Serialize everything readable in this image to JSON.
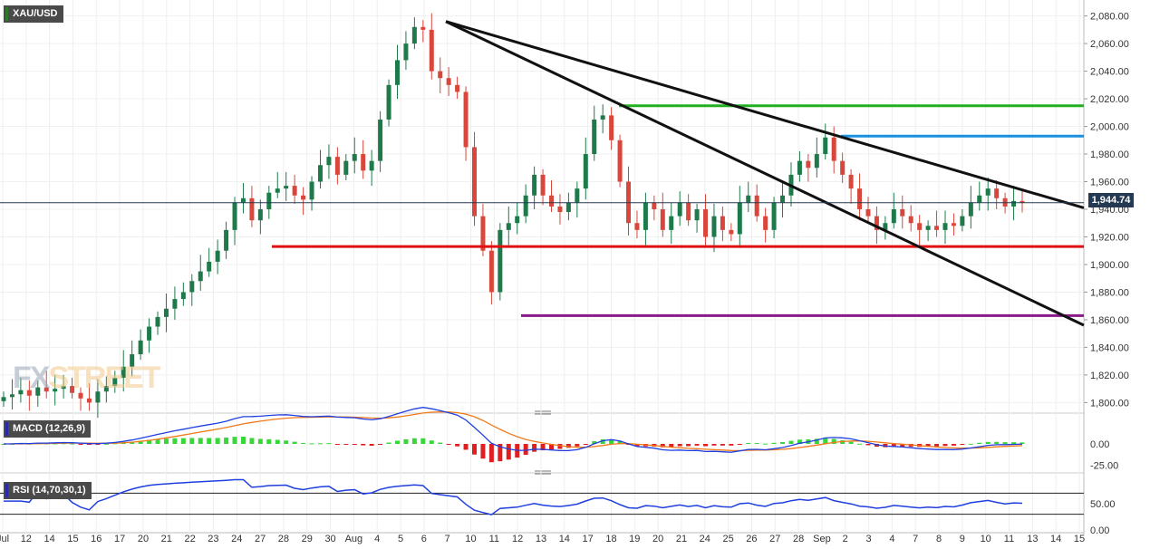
{
  "header": {
    "symbol": "XAU/USD"
  },
  "price_tag": "1,944.74",
  "indicators": {
    "macd_label": "MACD (12,26,9)",
    "rsi_label": "RSI (14,70,30,1)"
  },
  "logo": {
    "part1": "FX",
    "part2": "STREET"
  },
  "colors": {
    "up": "#1e7a4a",
    "down": "#d9473c",
    "support": "#e01010",
    "resistance_green": "#22b022",
    "resistance_blue": "#1a90e0",
    "low_line": "#8a1a8a",
    "trendline": "#111111",
    "macd_line": "#1f3fe0",
    "signal_line": "#f07a1a",
    "rsi_line": "#1f3fe0"
  },
  "chart_data": {
    "type": "candlestick",
    "y_ticks": [
      "2,080.00",
      "2,060.00",
      "2,040.00",
      "2,020.00",
      "2,000.00",
      "1,980.00",
      "1,960.00",
      "1,940.00",
      "1,920.00",
      "1,900.00",
      "1,880.00",
      "1,860.00",
      "1,840.00",
      "1,820.00",
      "1,800.00"
    ],
    "ylim": [
      1795,
      2085
    ],
    "x_labels": [
      "Jul",
      "12",
      "14",
      "15",
      "16",
      "17",
      "20",
      "21",
      "22",
      "23",
      "24",
      "27",
      "28",
      "29",
      "30",
      "Aug",
      "4",
      "5",
      "6",
      "7",
      "10",
      "11",
      "12",
      "13",
      "14",
      "17",
      "18",
      "19",
      "20",
      "21",
      "24",
      "25",
      "26",
      "27",
      "28",
      "Sep",
      "2",
      "3",
      "4",
      "7",
      "8",
      "9",
      "10",
      "11",
      "13",
      "14",
      "15"
    ],
    "closes": [
      1804,
      1806,
      1809,
      1805,
      1811,
      1808,
      1810,
      1812,
      1807,
      1803,
      1800,
      1808,
      1812,
      1818,
      1826,
      1835,
      1845,
      1855,
      1862,
      1868,
      1875,
      1880,
      1888,
      1895,
      1902,
      1910,
      1925,
      1945,
      1948,
      1932,
      1940,
      1952,
      1955,
      1957,
      1950,
      1947,
      1960,
      1972,
      1978,
      1965,
      1975,
      1980,
      1968,
      1975,
      2005,
      2030,
      2048,
      2060,
      2072,
      2070,
      2040,
      2035,
      2030,
      2025,
      1985,
      1935,
      1910,
      1880,
      1925,
      1930,
      1935,
      1950,
      1965,
      1950,
      1942,
      1938,
      1945,
      1955,
      1980,
      2005,
      2008,
      1990,
      1960,
      1930,
      1925,
      1945,
      1940,
      1925,
      1935,
      1945,
      1932,
      1940,
      1920,
      1935,
      1925,
      1922,
      1945,
      1950,
      1935,
      1925,
      1945,
      1950,
      1965,
      1975,
      1970,
      1980,
      1992,
      1975,
      1965,
      1955,
      1940,
      1935,
      1925,
      1930,
      1940,
      1935,
      1930,
      1925,
      1928,
      1925,
      1930,
      1928,
      1935,
      1945,
      1950,
      1955,
      1948,
      1942,
      1946,
      1944.74
    ],
    "support_levels": [
      1913,
      1863
    ],
    "resistance_levels": [
      2015,
      1993
    ],
    "macd": {
      "ylim": [
        -30,
        30
      ],
      "ticks": [
        "0.00",
        "-25.00"
      ]
    },
    "rsi": {
      "ylim": [
        0,
        100
      ],
      "ticks": [
        "50.00",
        "0.00"
      ],
      "levels": [
        70,
        30
      ]
    }
  }
}
